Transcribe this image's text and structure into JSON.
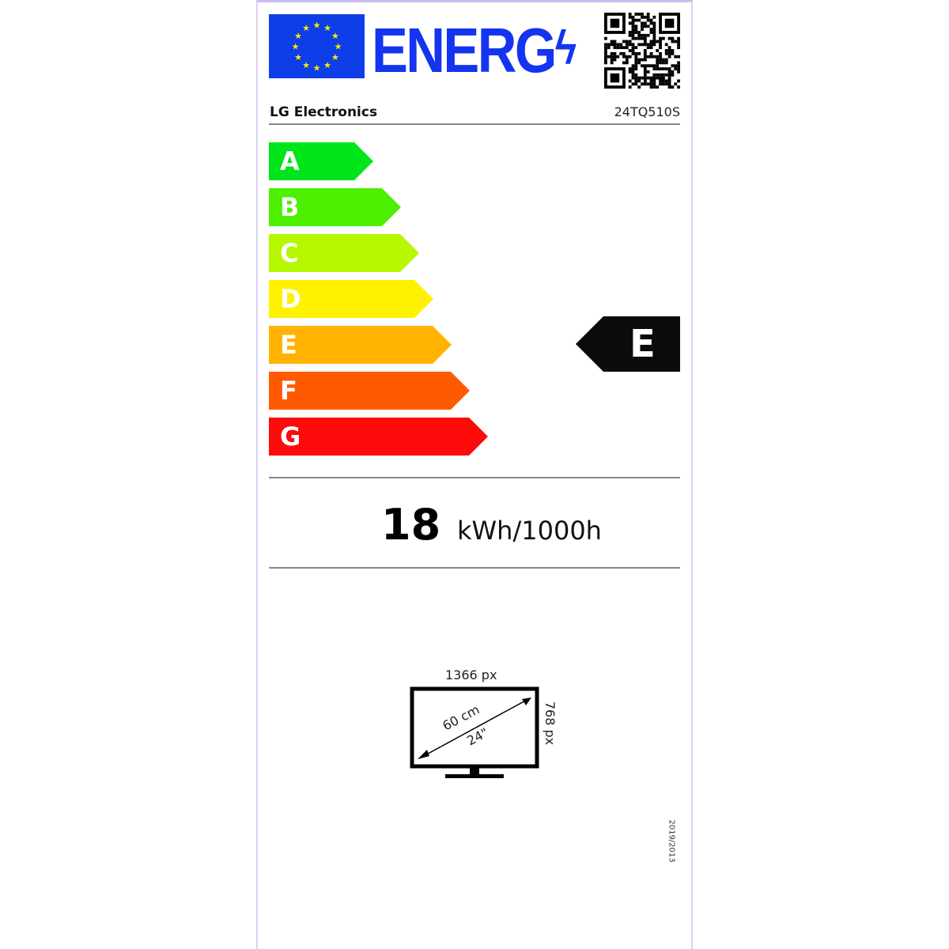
{
  "header": {
    "logo_text": "ENERG",
    "supplier": "LG Electronics",
    "model": "24TQ510S"
  },
  "scale": [
    {
      "class": "A",
      "color": "#00e41a"
    },
    {
      "class": "B",
      "color": "#4cf000"
    },
    {
      "class": "C",
      "color": "#b5f800"
    },
    {
      "class": "D",
      "color": "#fff200"
    },
    {
      "class": "E",
      "color": "#ffb200"
    },
    {
      "class": "F",
      "color": "#ff5a00"
    },
    {
      "class": "G",
      "color": "#ff0a0a"
    }
  ],
  "rating": {
    "class": "E"
  },
  "consumption": {
    "value": "18",
    "unit": "kWh/1000h"
  },
  "screen": {
    "width_px": "1366 px",
    "height_px": "768 px",
    "diagonal_cm": "60 cm",
    "diagonal_in": "24\""
  },
  "regulation": "2019/2013"
}
